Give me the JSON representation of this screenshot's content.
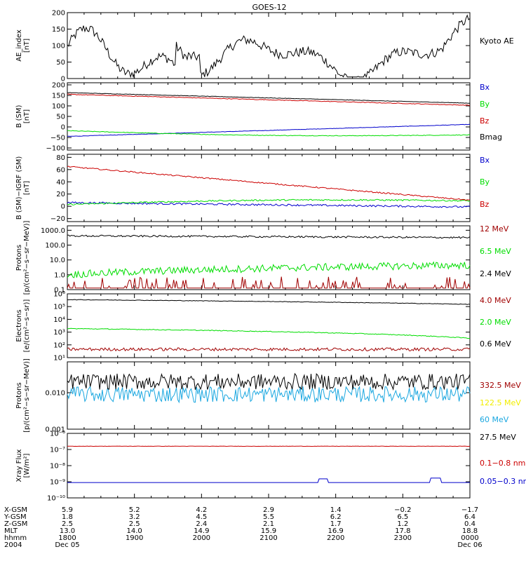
{
  "title": "GOES-12",
  "colors": {
    "black": "#000000",
    "red": "#cc0000",
    "green": "#00dd00",
    "blue": "#0000cc",
    "darkred": "#a00000",
    "cyan": "#1aa7e0",
    "yellow": "#f2ee00"
  },
  "chart_data": [
    {
      "type": "line",
      "id": "ae",
      "ylabel": [
        "AE_index",
        "[nT]"
      ],
      "ylim": [
        0,
        200
      ],
      "scale": "linear",
      "yticks": [
        0,
        50,
        100,
        150,
        200
      ],
      "yticklabels": [
        "0",
        "50",
        "100",
        "150",
        "200"
      ],
      "series": [
        {
          "name": "Kyoto AE",
          "color": "black",
          "kind": "ae"
        }
      ]
    },
    {
      "type": "line",
      "id": "bsm",
      "ylabel": [
        "B (SM)",
        "[nT]"
      ],
      "ylim": [
        -110,
        210
      ],
      "scale": "linear",
      "yticks": [
        -100,
        -50,
        0,
        50,
        100,
        150,
        200
      ],
      "yticklabels": [
        "−100",
        "−50",
        "0",
        "50",
        "100",
        "150",
        "200"
      ],
      "series": [
        {
          "name": "Bx",
          "color": "blue",
          "start": -45,
          "end": 12,
          "noise": 1
        },
        {
          "name": "By",
          "color": "green",
          "start": -18,
          "end": -38,
          "noise": 1.5,
          "sag": 12
        },
        {
          "name": "Bz",
          "color": "red",
          "start": 155,
          "end": 103,
          "noise": 1.5
        },
        {
          "name": "Bmag",
          "color": "black",
          "start": 163,
          "end": 113,
          "noise": 1
        }
      ]
    },
    {
      "type": "line",
      "id": "bigrf",
      "ylabel": [
        "B (SM)−IGRF (SM)",
        "[nT]"
      ],
      "ylim": [
        -25,
        85
      ],
      "scale": "linear",
      "yticks": [
        -20,
        0,
        20,
        40,
        60,
        80
      ],
      "yticklabels": [
        "−20",
        "0",
        "20",
        "40",
        "60",
        "80"
      ],
      "series": [
        {
          "name": "Bx",
          "color": "blue",
          "start": 6,
          "end": -1,
          "noise": 1.5
        },
        {
          "name": "By",
          "color": "green",
          "start": 3,
          "end": 9,
          "noise": 1.2,
          "sag": -4
        },
        {
          "name": "Bz",
          "color": "red",
          "start": 65,
          "end": 10,
          "noise": 1
        }
      ]
    },
    {
      "type": "line",
      "id": "protons",
      "ylabel": [
        "Protons",
        "[p/(cm²−s−sr−MeV)]"
      ],
      "ylim": [
        0.1,
        2000
      ],
      "scale": "log",
      "yticks": [
        0.1,
        1,
        10,
        100,
        1000
      ],
      "yticklabels": [
        "0.1",
        "1.0",
        "10.0",
        "100.0",
        "1000.0"
      ],
      "series": [
        {
          "name": "12 MeV",
          "color": "darkred",
          "start": 0.15,
          "end": 0.15,
          "noise": 0.5,
          "spiky": true
        },
        {
          "name": "6.5 MeV",
          "color": "green",
          "start": 1.0,
          "end": 4.5,
          "noise": 0.25
        },
        {
          "name": "2.4 MeV",
          "color": "black",
          "start": 420,
          "end": 320,
          "noise": 0.06
        }
      ]
    },
    {
      "type": "line",
      "id": "electrons",
      "ylabel": [
        "Electrons",
        "[e/(cm²−s−sr)]"
      ],
      "ylim": [
        10,
        1000000
      ],
      "scale": "log",
      "yticks": [
        10,
        100,
        1000,
        10000,
        100000,
        1000000
      ],
      "yticklabels": [
        "10¹",
        "10²",
        "10³",
        "10⁴",
        "10⁵",
        "10⁶"
      ],
      "series": [
        {
          "name": "4.0 MeV",
          "color": "darkred",
          "start": 45,
          "end": 45,
          "noise": 0.12
        },
        {
          "name": "2.0 MeV",
          "color": "green",
          "start": 1900,
          "end": 330,
          "noise": 0.03
        },
        {
          "name": "0.6 MeV",
          "color": "black",
          "start": 350000,
          "end": 150000,
          "noise": 0.02
        }
      ]
    },
    {
      "type": "line",
      "id": "hiprotons",
      "ylabel": [
        "Protons",
        "[p/(cm²−s−sr−MeV)]"
      ],
      "ylim": [
        0.001,
        0.07
      ],
      "scale": "log",
      "yticks": [
        0.001,
        0.01
      ],
      "yticklabels": [
        "0.001",
        "0.010"
      ],
      "series": [
        {
          "name": "332.5 MeV",
          "color": "darkred",
          "start": null,
          "end": null
        },
        {
          "name": "122.5 MeV",
          "color": "yellow",
          "start": null,
          "end": null
        },
        {
          "name": "60 MeV",
          "color": "cyan",
          "start": 0.009,
          "end": 0.009,
          "noise": 0.22
        },
        {
          "name": "27.5 MeV",
          "color": "black",
          "start": 0.02,
          "end": 0.02,
          "noise": 0.22
        }
      ]
    },
    {
      "type": "line",
      "id": "xray",
      "ylabel": [
        "Xray Flux",
        "[W/m²]"
      ],
      "ylim": [
        1e-10,
        1e-06
      ],
      "scale": "log",
      "yticks": [
        1e-10,
        1e-09,
        1e-08,
        1e-07,
        1e-06
      ],
      "yticklabels": [
        "10⁻¹⁰",
        "10⁻⁹",
        "10⁻⁸",
        "10⁻⁷",
        "10⁻⁶"
      ],
      "series": [
        {
          "name": "0.1−0.8 nm",
          "color": "red",
          "start": 1.6e-07,
          "end": 1.6e-07,
          "noise": 0.01
        },
        {
          "name": "0.05−0.3 nm",
          "color": "blue",
          "start": 9e-10,
          "end": 9e-10,
          "noise": 0,
          "bumps": [
            [
              0.636,
              1.5e-09
            ],
            [
              0.915,
              1.7e-09
            ]
          ]
        }
      ]
    }
  ],
  "axis_table": {
    "row_labels": [
      "X-GSM",
      "Y-GSM",
      "Z-GSM",
      "MLT",
      "hhmm",
      "2004"
    ],
    "columns": [
      [
        "5.9",
        "1.8",
        "2.5",
        "13.0",
        "1800",
        "Dec 05"
      ],
      [
        "5.2",
        "3.2",
        "2.5",
        "14.0",
        "1900",
        ""
      ],
      [
        "4.2",
        "4.5",
        "2.4",
        "14.9",
        "2000",
        ""
      ],
      [
        "2.9",
        "5.5",
        "2.1",
        "15.9",
        "2100",
        ""
      ],
      [
        "1.4",
        "6.2",
        "1.7",
        "16.9",
        "2200",
        ""
      ],
      [
        "−0.2",
        "6.5",
        "1.2",
        "17.8",
        "2300",
        ""
      ],
      [
        "−1.7",
        "6.4",
        "0.4",
        "18.8",
        "0000",
        "Dec 06"
      ]
    ]
  }
}
